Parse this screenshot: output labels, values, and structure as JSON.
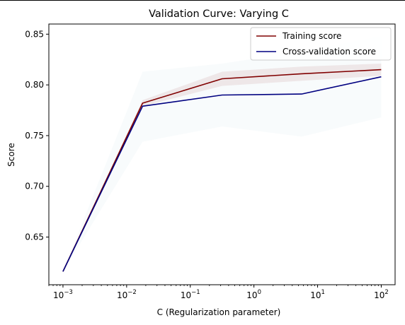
{
  "chart_data": {
    "type": "line",
    "title": "Validation Curve: Varying C",
    "xlabel": "C (Regularization parameter)",
    "ylabel": "Score",
    "xscale": "log",
    "xlim": [
      0.0006,
      165
    ],
    "ylim": [
      0.603,
      0.86
    ],
    "x": [
      0.001,
      0.0178,
      0.316,
      5.62,
      100
    ],
    "x_ticks": [
      {
        "value": 0.001,
        "base": "10",
        "exp": "−3"
      },
      {
        "value": 0.01,
        "base": "10",
        "exp": "−2"
      },
      {
        "value": 0.1,
        "base": "10",
        "exp": "−1"
      },
      {
        "value": 1,
        "base": "10",
        "exp": "0"
      },
      {
        "value": 10,
        "base": "10",
        "exp": "1"
      },
      {
        "value": 100,
        "base": "10",
        "exp": "2"
      }
    ],
    "y_ticks": [
      0.65,
      0.7,
      0.75,
      0.8,
      0.85
    ],
    "y_tick_labels": [
      "0.65",
      "0.70",
      "0.75",
      "0.80",
      "0.85"
    ],
    "grid": false,
    "legend_position": "top-right",
    "series": [
      {
        "name": "Training score",
        "color": "#800000",
        "values": [
          0.616,
          0.782,
          0.806,
          0.811,
          0.815
        ],
        "band_lower": [
          0.616,
          0.779,
          0.799,
          0.804,
          0.809
        ],
        "band_upper": [
          0.616,
          0.785,
          0.813,
          0.818,
          0.821
        ],
        "band_color": "#800000"
      },
      {
        "name": "Cross-validation score",
        "color": "#000080",
        "values": [
          0.616,
          0.779,
          0.79,
          0.791,
          0.808
        ],
        "band_lower": [
          0.616,
          0.744,
          0.759,
          0.749,
          0.768
        ],
        "band_upper": [
          0.616,
          0.813,
          0.821,
          0.833,
          0.848
        ],
        "band_color": "#4a90b8"
      }
    ]
  }
}
